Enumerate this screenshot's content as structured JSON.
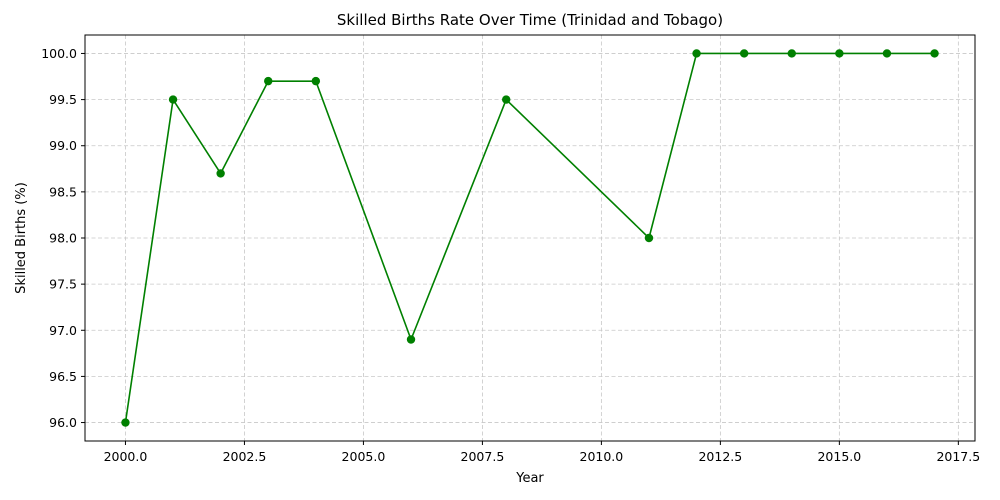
{
  "chart_data": {
    "type": "line",
    "title": "Skilled Births Rate Over Time (Trinidad and Tobago)",
    "xlabel": "Year",
    "ylabel": "Skilled Births (%)",
    "x": [
      2000,
      2001,
      2002,
      2003,
      2004,
      2006,
      2008,
      2011,
      2012,
      2013,
      2014,
      2015,
      2016,
      2017
    ],
    "series": [
      {
        "name": "Skilled Births (%)",
        "values": [
          96.0,
          99.5,
          98.7,
          99.7,
          99.7,
          96.9,
          99.5,
          98.0,
          100.0,
          100.0,
          100.0,
          100.0,
          100.0,
          100.0
        ],
        "color": "#008000",
        "marker": "circle"
      }
    ],
    "xlim": [
      1999.15,
      2017.85
    ],
    "ylim": [
      95.8,
      100.2
    ],
    "xticks": [
      2000.0,
      2002.5,
      2005.0,
      2007.5,
      2010.0,
      2012.5,
      2015.0,
      2017.5
    ],
    "xtick_labels": [
      "2000.0",
      "2002.5",
      "2005.0",
      "2007.5",
      "2010.0",
      "2012.5",
      "2015.0",
      "2017.5"
    ],
    "yticks": [
      96.0,
      96.5,
      97.0,
      97.5,
      98.0,
      98.5,
      99.0,
      99.5,
      100.0
    ],
    "ytick_labels": [
      "96.0",
      "96.5",
      "97.0",
      "97.5",
      "98.0",
      "98.5",
      "99.0",
      "99.5",
      "100.0"
    ],
    "grid": true,
    "grid_style": "dashed",
    "grid_color": "#c8c8c8"
  }
}
